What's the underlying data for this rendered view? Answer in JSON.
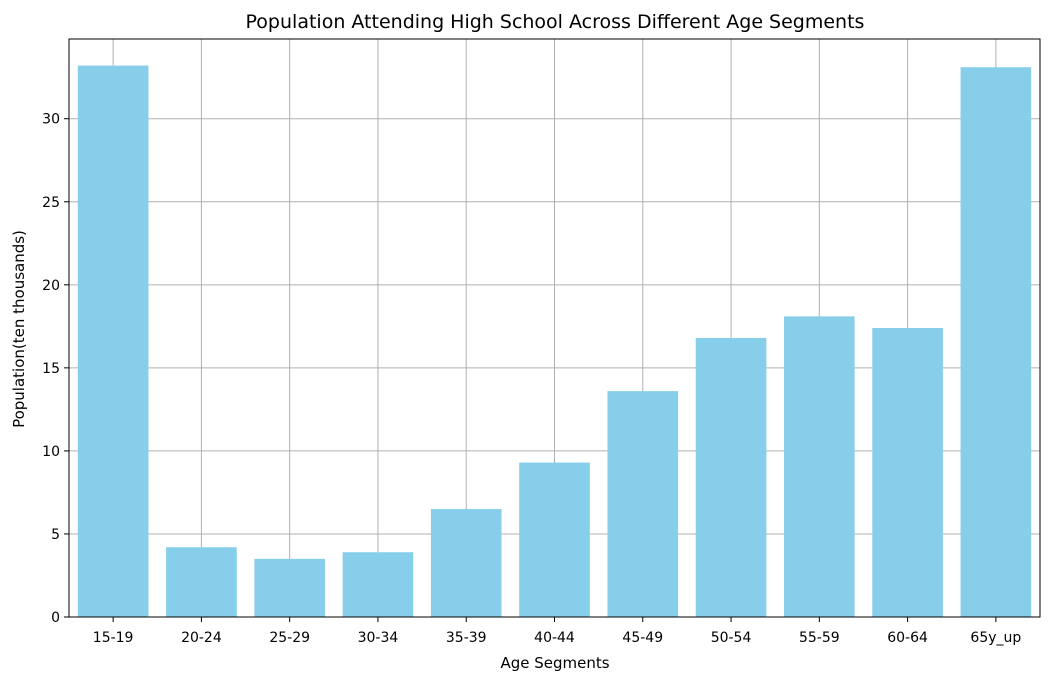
{
  "chart_data": {
    "type": "bar",
    "title": "Population Attending High School Across Different Age Segments",
    "xlabel": "Age Segments",
    "ylabel": "Population(ten thousands)",
    "categories": [
      "15-19",
      "20-24",
      "25-29",
      "30-34",
      "35-39",
      "40-44",
      "45-49",
      "50-54",
      "55-59",
      "60-64",
      "65y_up"
    ],
    "values": [
      33.2,
      4.2,
      3.5,
      3.9,
      6.5,
      9.3,
      13.6,
      16.8,
      18.1,
      17.4,
      33.1
    ],
    "ylim": [
      0,
      34.8
    ],
    "yticks": [
      0,
      5,
      10,
      15,
      20,
      25,
      30
    ],
    "grid": true,
    "legend": "none",
    "colors": {
      "bar": "#87ceeb",
      "grid": "#b0b0b0",
      "axis": "#000000",
      "background": "#ffffff"
    }
  }
}
